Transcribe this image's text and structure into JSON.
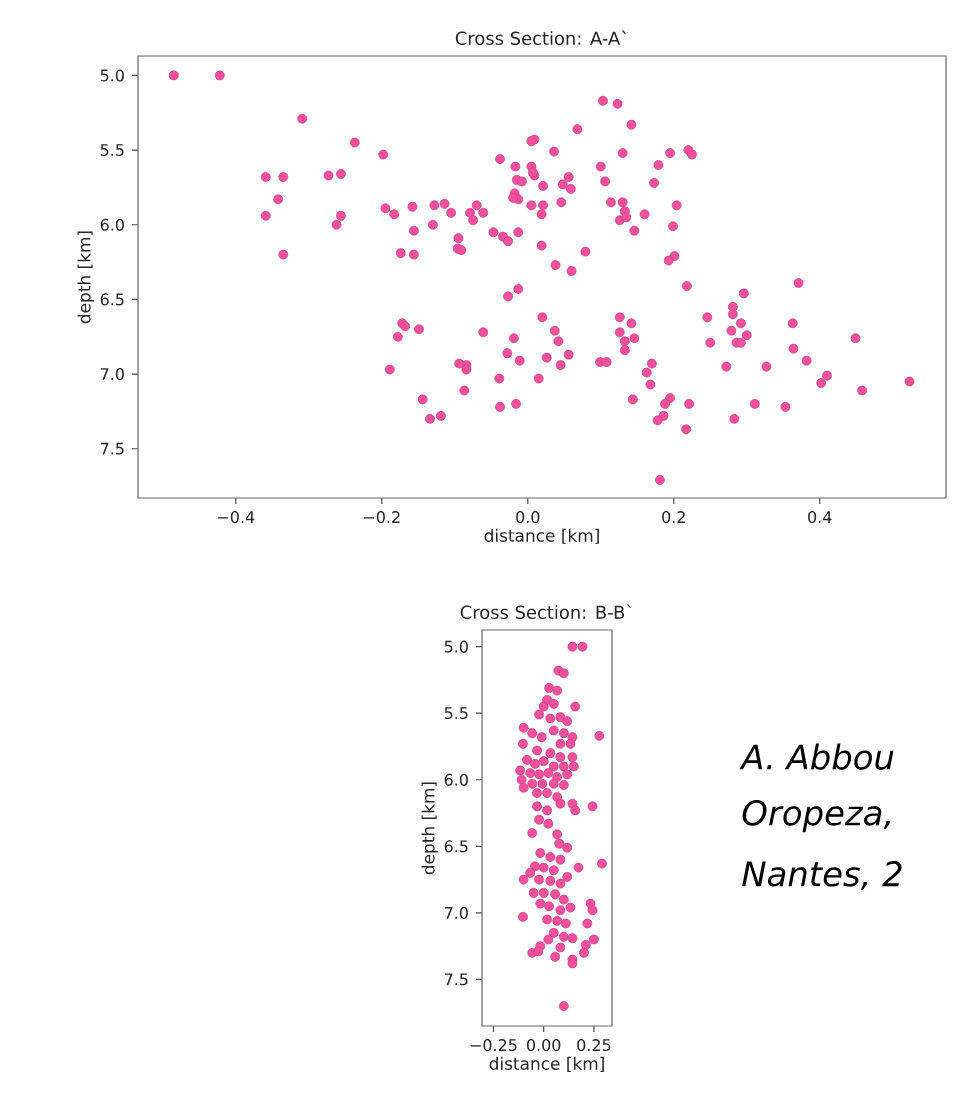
{
  "chart_data": [
    {
      "type": "scatter",
      "title": "Cross Section: A-A`",
      "xlabel": "distance [km]",
      "ylabel": "depth [km]",
      "marker": "circle",
      "xlim": [
        -0.534,
        0.573
      ],
      "ylim": [
        7.83,
        4.87
      ],
      "xticks": [
        {
          "value": -0.4,
          "label": "−0.4"
        },
        {
          "value": -0.2,
          "label": "−0.2"
        },
        {
          "value": 0,
          "label": "0.0"
        },
        {
          "value": 0.2,
          "label": "0.2"
        },
        {
          "value": 0.4,
          "label": "0.4"
        }
      ],
      "yticks": [
        {
          "value": 5,
          "label": "5.0"
        },
        {
          "value": 5.5,
          "label": "5.5"
        },
        {
          "value": 6,
          "label": "6.0"
        },
        {
          "value": 6.5,
          "label": "6.5"
        },
        {
          "value": 7,
          "label": "7.0"
        },
        {
          "value": 7.5,
          "label": "7.5"
        }
      ],
      "series": [
        {
          "color": "#f0509c",
          "x": [
            -0.485,
            -0.422,
            -0.309,
            -0.237,
            -0.198,
            -0.359,
            -0.335,
            -0.342,
            -0.359,
            -0.335,
            -0.273,
            -0.256,
            -0.256,
            -0.262,
            -0.195,
            -0.183,
            -0.158,
            -0.13,
            -0.128,
            -0.114,
            -0.156,
            -0.174,
            -0.156,
            -0.095,
            -0.096,
            -0.091,
            -0.105,
            -0.079,
            -0.07,
            -0.075,
            -0.172,
            -0.168,
            -0.149,
            -0.178,
            -0.189,
            -0.094,
            -0.084,
            -0.084,
            -0.087,
            -0.144,
            -0.134,
            -0.119,
            -0.061,
            -0.047,
            -0.034,
            -0.027,
            -0.013,
            -0.038,
            -0.061,
            0.103,
            0.123,
            0.142,
            0.068,
            0.009,
            0.005,
            0.036,
            -0.017,
            0.005,
            -0.015,
            -0.008,
            0.009,
            0.007,
            0.021,
            -0.018,
            -0.013,
            -0.02,
            0.005,
            0.021,
            0.019,
            0.046,
            0.048,
            0.056,
            0.059,
            0.1,
            0.106,
            0.13,
            0.114,
            0.13,
            0.133,
            0.126,
            0.135,
            0.146,
            0.16,
            0.173,
            0.179,
            0.195,
            0.22,
            0.225,
            0.204,
            0.199,
            0.201,
            0.193,
            0.218,
            0.019,
            0.079,
            0.038,
            0.06,
            -0.027,
            -0.013,
            0.02,
            0.037,
            0.042,
            -0.019,
            -0.028,
            -0.011,
            0.026,
            0.045,
            0.056,
            -0.039,
            0.015,
            -0.038,
            -0.016,
            0.099,
            0.108,
            0.126,
            0.142,
            0.126,
            0.133,
            0.146,
            0.133,
            0.17,
            0.163,
            0.168,
            0.144,
            0.195,
            0.188,
            0.221,
            0.186,
            0.178,
            0.217,
            0.181,
            0.246,
            0.281,
            0.281,
            0.292,
            0.279,
            0.296,
            0.371,
            0.25,
            0.286,
            0.292,
            0.3,
            0.272,
            0.327,
            0.363,
            0.364,
            0.382,
            0.449,
            0.41,
            0.402,
            0.458,
            0.523,
            0.311,
            0.353,
            0.283
          ],
          "values": [
            5.0,
            5.0,
            5.29,
            5.45,
            5.53,
            5.68,
            5.68,
            5.83,
            5.94,
            6.2,
            5.67,
            5.66,
            5.94,
            6.0,
            5.89,
            5.93,
            5.88,
            6.0,
            5.87,
            5.86,
            6.04,
            6.19,
            6.2,
            6.09,
            6.16,
            6.17,
            5.92,
            5.92,
            5.87,
            5.97,
            6.66,
            6.68,
            6.7,
            6.75,
            6.97,
            6.93,
            6.94,
            6.97,
            7.11,
            7.17,
            7.3,
            7.28,
            5.92,
            6.05,
            6.08,
            6.11,
            6.05,
            5.56,
            6.72,
            5.17,
            5.19,
            5.33,
            5.36,
            5.43,
            5.44,
            5.51,
            5.61,
            5.61,
            5.7,
            5.71,
            5.67,
            5.65,
            5.74,
            5.79,
            5.83,
            5.82,
            5.87,
            5.87,
            5.93,
            5.85,
            5.73,
            5.68,
            5.76,
            5.61,
            5.71,
            5.52,
            5.85,
            5.85,
            5.91,
            5.97,
            5.95,
            6.04,
            5.93,
            5.72,
            5.6,
            5.52,
            5.5,
            5.53,
            5.87,
            6.01,
            6.21,
            6.24,
            6.41,
            6.14,
            6.18,
            6.27,
            6.31,
            6.48,
            6.43,
            6.62,
            6.71,
            6.78,
            6.76,
            6.86,
            6.91,
            6.89,
            6.94,
            6.87,
            7.03,
            7.03,
            7.22,
            7.2,
            6.92,
            6.92,
            6.62,
            6.66,
            6.72,
            6.78,
            6.76,
            6.84,
            6.93,
            6.99,
            7.07,
            7.17,
            7.16,
            7.2,
            7.2,
            7.28,
            7.31,
            7.37,
            7.71,
            6.62,
            6.55,
            6.6,
            6.66,
            6.71,
            6.46,
            6.39,
            6.79,
            6.79,
            6.79,
            6.74,
            6.95,
            6.95,
            6.66,
            6.83,
            6.91,
            6.76,
            7.01,
            7.06,
            7.11,
            7.05,
            7.2,
            7.22,
            7.3
          ]
        }
      ]
    },
    {
      "type": "scatter",
      "title": "Cross Section: B-B`",
      "xlabel": "distance [km]",
      "ylabel": "depth [km]",
      "marker": "circle",
      "xlim": [
        -0.307,
        0.34
      ],
      "ylim": [
        7.85,
        4.875
      ],
      "xticks": [
        {
          "value": -0.25,
          "label": "−0.25"
        },
        {
          "value": 0,
          "label": "0.00"
        },
        {
          "value": 0.25,
          "label": "0.25"
        }
      ],
      "yticks": [
        {
          "value": 5,
          "label": "5.0"
        },
        {
          "value": 5.5,
          "label": "5.5"
        },
        {
          "value": 6,
          "label": "6.0"
        },
        {
          "value": 6.5,
          "label": "6.5"
        },
        {
          "value": 7,
          "label": "7.0"
        },
        {
          "value": 7.5,
          "label": "7.5"
        }
      ],
      "annotations": [
        "A. Abbou",
        "Oropeza,",
        "Nantes, 2"
      ],
      "series": [
        {
          "color": "#f0509c",
          "x": [
            0.143,
            0.193,
            0.073,
            0.1,
            0.027,
            0.067,
            0.017,
            0.05,
            0,
            0.157,
            -0.023,
            0.033,
            0.083,
            0.117,
            -0.1,
            -0.057,
            -0.01,
            0.05,
            0.1,
            0.143,
            0.083,
            0.133,
            0.277,
            -0.103,
            -0.033,
            0.033,
            0.083,
            0.143,
            -0.083,
            -0.043,
            0,
            0.05,
            0.1,
            0.15,
            -0.117,
            -0.067,
            -0.023,
            0.023,
            0.067,
            0.117,
            -0.11,
            -0.057,
            -0.007,
            0.05,
            0.1,
            -0.1,
            -0.033,
            0.017,
            0.067,
            -0.033,
            0.017,
            0.083,
            0.143,
            0.157,
            0.243,
            -0.023,
            0.023,
            -0.057,
            0.067,
            0.077,
            0.117,
            -0.017,
            0.033,
            0.083,
            0.29,
            -0.043,
            0,
            0.05,
            0.173,
            -0.067,
            -0.1,
            -0.023,
            0.033,
            0.083,
            0.117,
            -0.05,
            0,
            0.057,
            0.1,
            -0.017,
            0.027,
            0.083,
            0.133,
            0.233,
            0.243,
            -0.103,
            0.017,
            0.067,
            0.11,
            0.217,
            0.05,
            0.1,
            0.023,
            0.143,
            0.25,
            0.21,
            -0.017,
            0.083,
            -0.057,
            -0.027,
            0.2,
            0.057,
            0.143,
            0.143,
            0.1
          ],
          "values": [
            5.0,
            5.0,
            5.18,
            5.2,
            5.31,
            5.33,
            5.4,
            5.43,
            5.45,
            5.45,
            5.51,
            5.54,
            5.53,
            5.56,
            5.61,
            5.65,
            5.68,
            5.63,
            5.65,
            5.68,
            5.73,
            5.73,
            5.67,
            5.73,
            5.78,
            5.8,
            5.83,
            5.83,
            5.85,
            5.88,
            5.86,
            5.9,
            5.9,
            5.9,
            5.93,
            5.95,
            5.96,
            5.95,
            5.98,
            5.96,
            6.0,
            6.03,
            6.03,
            6.03,
            6.04,
            6.06,
            6.1,
            6.1,
            6.13,
            6.2,
            6.23,
            6.18,
            6.18,
            6.23,
            6.2,
            6.3,
            6.33,
            6.4,
            6.41,
            6.48,
            6.51,
            6.55,
            6.58,
            6.6,
            6.63,
            6.65,
            6.66,
            6.68,
            6.66,
            6.7,
            6.75,
            6.75,
            6.76,
            6.78,
            6.73,
            6.85,
            6.85,
            6.86,
            6.9,
            6.93,
            6.95,
            6.98,
            6.96,
            6.93,
            6.98,
            7.03,
            7.05,
            7.06,
            7.08,
            7.08,
            7.15,
            7.18,
            7.2,
            7.19,
            7.2,
            7.24,
            7.25,
            7.26,
            7.3,
            7.29,
            7.3,
            7.33,
            7.35,
            7.38,
            7.7
          ]
        }
      ]
    }
  ]
}
